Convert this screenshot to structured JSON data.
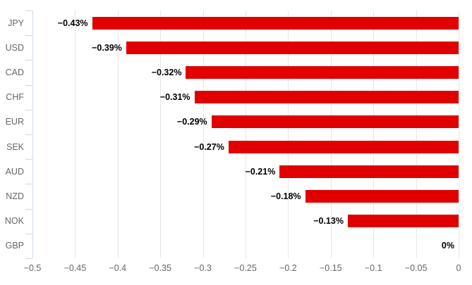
{
  "chart_data": {
    "type": "bar",
    "orientation": "horizontal",
    "title": "",
    "categories": [
      "JPY",
      "USD",
      "CAD",
      "CHF",
      "EUR",
      "SEK",
      "AUD",
      "NZD",
      "NOK",
      "GBP"
    ],
    "values": [
      -0.43,
      -0.39,
      -0.32,
      -0.31,
      -0.29,
      -0.27,
      -0.21,
      -0.18,
      -0.13,
      0
    ],
    "data_labels": [
      "−0.43%",
      "−0.39%",
      "−0.32%",
      "−0.31%",
      "−0.29%",
      "−0.27%",
      "−0.21%",
      "−0.18%",
      "−0.13%",
      "0%"
    ],
    "xlim": [
      -0.5,
      0
    ],
    "x_ticks": [
      -0.5,
      -0.45,
      -0.4,
      -0.35,
      -0.3,
      -0.25,
      -0.2,
      -0.15,
      -0.1,
      -0.05,
      0
    ],
    "x_tick_labels": [
      "−0.5",
      "−0.45",
      "−0.4",
      "−0.35",
      "−0.3",
      "−0.25",
      "−0.2",
      "−0.15",
      "−0.1",
      "−0.05",
      "0"
    ],
    "xlabel": "",
    "ylabel": "",
    "grid": true,
    "legend": "none",
    "colors": {
      "bar": "#e00000",
      "axis_line": "#ccd6eb",
      "gridline": "#e6e6e6",
      "axis_label": "#666666",
      "data_label": "#000000",
      "background": "#ffffff"
    }
  }
}
